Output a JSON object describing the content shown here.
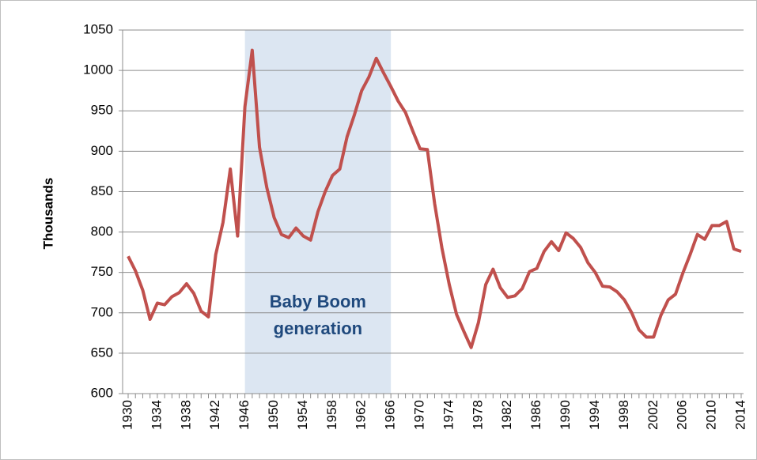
{
  "chart_data": {
    "type": "line",
    "y_label": "Thousands",
    "annotation": [
      "Baby Boom",
      "generation"
    ],
    "shaded_span": [
      1946,
      1966
    ],
    "shade_color": "#dce6f2",
    "annotation_color": "#1f497d",
    "x": [
      1930,
      1931,
      1932,
      1933,
      1934,
      1935,
      1936,
      1937,
      1938,
      1939,
      1940,
      1941,
      1942,
      1943,
      1944,
      1945,
      1946,
      1947,
      1948,
      1949,
      1950,
      1951,
      1952,
      1953,
      1954,
      1955,
      1956,
      1957,
      1958,
      1959,
      1960,
      1961,
      1962,
      1963,
      1964,
      1965,
      1966,
      1967,
      1968,
      1969,
      1970,
      1971,
      1972,
      1973,
      1974,
      1975,
      1976,
      1977,
      1978,
      1979,
      1980,
      1981,
      1982,
      1983,
      1984,
      1985,
      1986,
      1987,
      1988,
      1989,
      1990,
      1991,
      1992,
      1993,
      1994,
      1995,
      1996,
      1997,
      1998,
      1999,
      2000,
      2001,
      2002,
      2003,
      2004,
      2005,
      2006,
      2007,
      2008,
      2009,
      2010,
      2011,
      2012,
      2013,
      2014
    ],
    "series": [
      {
        "color": "#c0504d",
        "values": [
          770,
          752,
          728,
          692,
          712,
          710,
          720,
          725,
          736,
          724,
          702,
          695,
          772,
          812,
          878,
          795,
          955,
          1025,
          905,
          855,
          818,
          797,
          793,
          805,
          795,
          790,
          825,
          850,
          870,
          878,
          918,
          945,
          975,
          992,
          1015,
          997,
          980,
          962,
          948,
          925,
          903,
          902,
          835,
          780,
          735,
          698,
          677,
          657,
          688,
          735,
          754,
          731,
          719,
          721,
          730,
          751,
          755,
          776,
          788,
          777,
          799,
          792,
          781,
          762,
          750,
          733,
          732,
          726,
          716,
          700,
          679,
          670,
          670,
          697,
          716,
          723,
          749,
          772,
          797,
          791,
          808,
          808,
          813,
          779,
          776
        ]
      }
    ],
    "xlim": [
      1930,
      2014
    ],
    "xticks": [
      1930,
      1934,
      1938,
      1942,
      1946,
      1950,
      1954,
      1958,
      1962,
      1966,
      1970,
      1974,
      1978,
      1982,
      1986,
      1990,
      1994,
      1998,
      2002,
      2006,
      2010,
      2014
    ],
    "ylim": [
      600,
      1050
    ],
    "yticks": [
      600,
      650,
      700,
      750,
      800,
      850,
      900,
      950,
      1000,
      1050
    ],
    "grid": true
  }
}
